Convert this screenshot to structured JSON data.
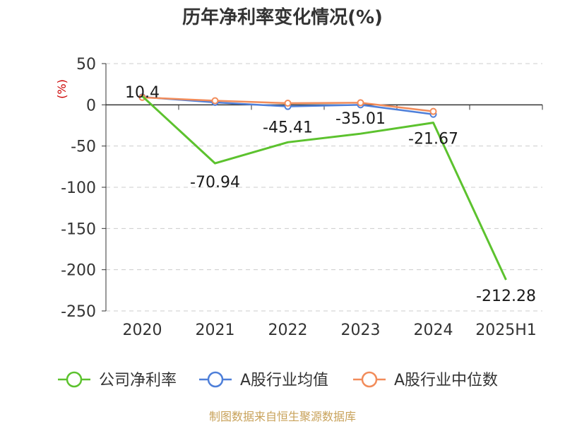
{
  "chart_data": {
    "type": "line",
    "title": "历年净利率变化情况(%)",
    "y_unit": "(%)",
    "categories": [
      "2020",
      "2021",
      "2022",
      "2023",
      "2024",
      "2025H1"
    ],
    "ylim": [
      -250,
      50
    ],
    "yticks": [
      50,
      0,
      -50,
      -100,
      -150,
      -200,
      -250
    ],
    "grid": true,
    "legend_position": "bottom",
    "series": [
      {
        "name": "公司净利率",
        "color": "#5cc22e",
        "values": [
          10.4,
          -70.94,
          -45.41,
          -35.01,
          -21.67,
          -212.28
        ],
        "labels": [
          "10.4",
          "-70.94",
          "-45.41",
          "-35.01",
          "-21.67",
          "-212.28"
        ]
      },
      {
        "name": "A股行业均值",
        "color": "#4e7fd9",
        "values": [
          9.5,
          3.0,
          -2.0,
          0.0,
          -11.5,
          null
        ]
      },
      {
        "name": "A股行业中位数",
        "color": "#f28c5a",
        "values": [
          9.0,
          5.0,
          2.0,
          2.5,
          -8.0,
          null
        ]
      }
    ]
  },
  "source_text": "制图数据来自恒生聚源数据库"
}
